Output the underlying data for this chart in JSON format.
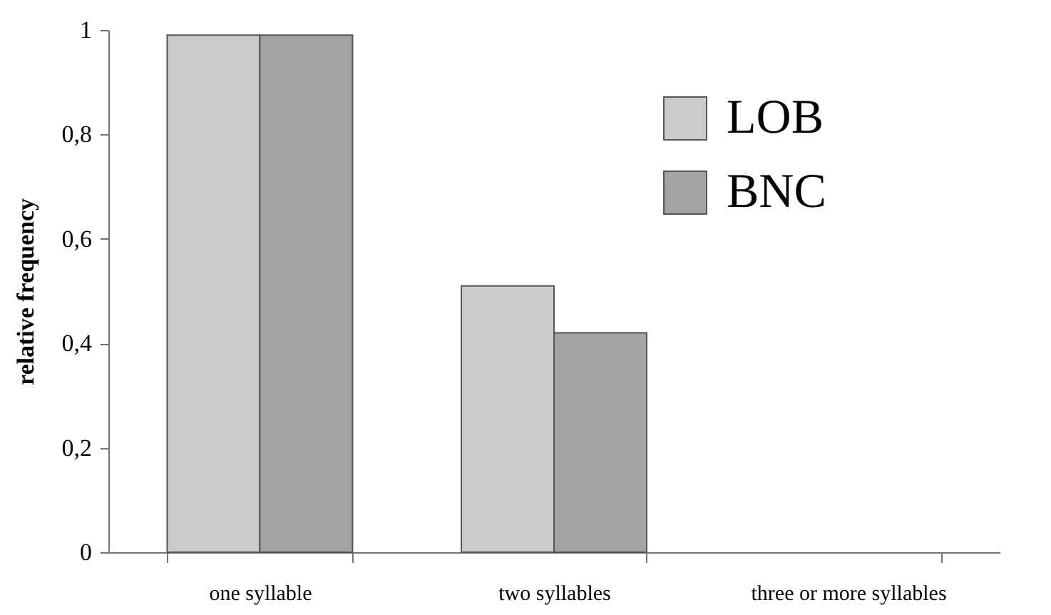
{
  "chart_data": {
    "type": "bar",
    "ylabel": "relative frequency",
    "categories": [
      "one syllable",
      "two syllables",
      "three or more syllables"
    ],
    "series": [
      {
        "name": "LOB",
        "color": "#cbcbcb",
        "values": [
          0.99,
          0.51,
          0
        ]
      },
      {
        "name": "BNC",
        "color": "#a3a3a3",
        "values": [
          0.99,
          0.42,
          0
        ]
      }
    ],
    "ylim": [
      0,
      1
    ],
    "yticks": [
      0,
      {
        "value": 0.2,
        "label": "0,2"
      },
      {
        "value": 0.4,
        "label": "0,4"
      },
      {
        "value": 0.6,
        "label": "0,6"
      },
      {
        "value": 0.8,
        "label": "0,8"
      },
      1
    ],
    "grid": false,
    "legend": "top right"
  }
}
